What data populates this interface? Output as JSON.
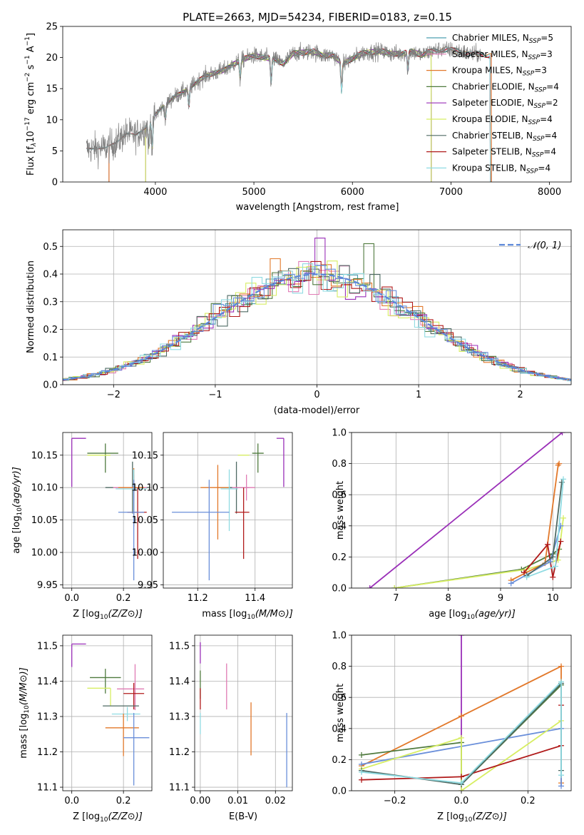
{
  "figure_title": "PLATE=2663, MJD=54234, FIBERID=0183, z=0.15",
  "colors": {
    "Chabrier MILES": "#4d9fb0",
    "Salpeter MILES": "#e07bb4",
    "Kroupa MILES": "#e2782a",
    "Chabrier ELODIE": "#4f7a3e",
    "Salpeter ELODIE": "#9a2fb8",
    "Kroupa ELODIE": "#d7ee63",
    "Chabrier STELIB": "#4e6a63",
    "Salpeter STELIB": "#b01a1a",
    "Kroupa STELIB": "#8fdbe2",
    "Chabrier MILES alt": "#6a8fda",
    "model": "#7f7f7f",
    "normal": "#5b87d8",
    "grid": "#b0b0b0"
  },
  "chart_data": [
    {
      "id": "spectrum",
      "type": "line",
      "title": "PLATE=2663, MJD=54234, FIBERID=0183, z=0.15",
      "xlabel": "wavelength [Angstrom, rest frame]",
      "ylabel": "Flux [f",
      "xlim": [
        3060,
        8220
      ],
      "ylim": [
        0,
        25
      ],
      "xticks": [
        4000,
        5000,
        6000,
        7000,
        8000
      ],
      "yticks": [
        0,
        5,
        10,
        15,
        20,
        25
      ],
      "grid": false,
      "legend_position": "upper-right",
      "continuum_x": [
        3300,
        3500,
        3600,
        3700,
        3800,
        3900,
        4000,
        4100,
        4200,
        4300,
        4400,
        4500,
        4600,
        4700,
        4800,
        4900,
        5000,
        5100,
        5200,
        5300,
        5400,
        5500,
        5600,
        5700,
        5800,
        5900,
        6000,
        6100,
        6200,
        6300,
        6400,
        6500,
        6600,
        6700,
        6800,
        6900,
        7000,
        7100,
        7200,
        7300,
        7400,
        7500,
        7600,
        7700,
        7800,
        7900,
        8000,
        8100,
        8200
      ],
      "continuum_y": [
        5.3,
        5.5,
        6.3,
        7.8,
        7.5,
        8.8,
        10.8,
        12.5,
        13.8,
        14.6,
        15.8,
        17.0,
        17.5,
        18.0,
        19.0,
        19.8,
        20.3,
        20.0,
        19.8,
        19.0,
        20.7,
        20.8,
        21.0,
        20.3,
        20.4,
        19.0,
        19.8,
        20.7,
        20.9,
        21.0,
        20.6,
        20.6,
        21.0,
        20.4,
        21.0,
        21.3,
        21.2,
        21.0,
        20.5,
        20.6,
        20.3,
        19.6,
        19.8,
        19.7,
        19.9,
        19.5,
        19.3,
        19.4,
        19.2
      ],
      "series": [
        {
          "name": "Chabrier MILES, N",
          "nssp": "=5"
        },
        {
          "name": "Salpeter MILES, N",
          "nssp": "=3"
        },
        {
          "name": "Kroupa MILES, N",
          "nssp": "=3"
        },
        {
          "name": "Chabrier ELODIE, N",
          "nssp": "=4"
        },
        {
          "name": "Salpeter ELODIE, N",
          "nssp": "=2"
        },
        {
          "name": "Kroupa ELODIE, N",
          "nssp": "=4"
        },
        {
          "name": "Chabrier STELIB, N",
          "nssp": "=4"
        },
        {
          "name": "Salpeter STELIB, N",
          "nssp": "=4"
        },
        {
          "name": "Kroupa STELIB, N",
          "nssp": "=4"
        }
      ]
    },
    {
      "id": "residuals",
      "type": "histogram",
      "xlabel": "(data-model)/error",
      "ylabel": "Normed distribution",
      "xlim": [
        -2.5,
        2.5
      ],
      "ylim": [
        0,
        0.56
      ],
      "xticks": [
        -2,
        -1,
        0,
        1,
        2
      ],
      "yticks": [
        0.0,
        0.1,
        0.2,
        0.3,
        0.4,
        0.5
      ],
      "grid": true,
      "legend_position": "upper-right",
      "legend_label": "𝒩(0, 1)"
    },
    {
      "id": "age-vs-Z",
      "type": "errorbar",
      "xlabel": "Z [log",
      "ylabel": "age  [log",
      "xlim": [
        -0.035,
        0.31
      ],
      "ylim": [
        9.945,
        10.185
      ],
      "xticks": [
        0.0,
        0.2
      ],
      "yticks": [
        9.95,
        10.0,
        10.05,
        10.1,
        10.15
      ],
      "grid": true,
      "points": [
        {
          "series": "Salpeter ELODIE",
          "x": 0.0,
          "y": 10.176,
          "xerr": [
            0.0,
            0.055
          ],
          "yerr": [
            0.075,
            0.0
          ]
        },
        {
          "series": "Chabrier ELODIE",
          "x": 0.13,
          "y": 10.153,
          "xerr": [
            0.07,
            0.05
          ],
          "yerr": [
            0.03,
            0.015
          ]
        },
        {
          "series": "Kroupa ELODIE",
          "x": 0.15,
          "y": 10.15,
          "xerr": [
            0.09,
            0.0
          ],
          "yerr": [
            0.0,
            0.0
          ]
        },
        {
          "series": "Chabrier STELIB",
          "x": 0.235,
          "y": 10.1,
          "xerr": [
            0.105,
            0.065
          ],
          "yerr": [
            0.04,
            0.04
          ]
        },
        {
          "series": "Salpeter MILES",
          "x": 0.24,
          "y": 10.1,
          "xerr": [
            0.08,
            0.05
          ],
          "yerr": [
            0.02,
            0.02
          ]
        },
        {
          "series": "Kroupa MILES",
          "x": 0.24,
          "y": 10.1,
          "xerr": [
            0.06,
            0.04
          ],
          "yerr": [
            0.06,
            0.03
          ]
        },
        {
          "series": "Kroupa STELIB",
          "x": 0.24,
          "y": 10.098,
          "xerr": [
            0.07,
            0.05
          ],
          "yerr": [
            0.05,
            0.03
          ]
        },
        {
          "series": "Salpeter STELIB",
          "x": 0.255,
          "y": 10.062,
          "xerr": [
            0.04,
            0.035
          ],
          "yerr": [
            0.072,
            0.038
          ]
        },
        {
          "series": "Chabrier MILES alt",
          "x": 0.24,
          "y": 10.062,
          "xerr": [
            0.06,
            0.04
          ],
          "yerr": [
            0.105,
            0.05
          ]
        }
      ]
    },
    {
      "id": "age-vs-mass",
      "type": "errorbar",
      "xlabel": "mass [log",
      "ylabel": "",
      "xlim": [
        11.08,
        11.53
      ],
      "ylim": [
        9.945,
        10.185
      ],
      "xticks": [
        11.2,
        11.4
      ],
      "yticks": [
        9.95,
        10.0,
        10.05,
        10.1,
        10.15
      ],
      "grid": true,
      "points": [
        {
          "series": "Salpeter ELODIE",
          "x": 11.5,
          "y": 10.176,
          "xerr": [
            0.025,
            0.0
          ],
          "yerr": [
            0.075,
            0.0
          ]
        },
        {
          "series": "Chabrier ELODIE",
          "x": 11.41,
          "y": 10.153,
          "xerr": [
            0.02,
            0.02
          ],
          "yerr": [
            0.03,
            0.015
          ]
        },
        {
          "series": "Kroupa ELODIE",
          "x": 11.38,
          "y": 10.15,
          "xerr": [
            0.04,
            0.0
          ],
          "yerr": [
            0.0,
            0.0
          ]
        },
        {
          "series": "Chabrier STELIB",
          "x": 11.335,
          "y": 10.1,
          "xerr": [
            0.065,
            0.045
          ],
          "yerr": [
            0.04,
            0.04
          ]
        },
        {
          "series": "Salpeter MILES",
          "x": 11.37,
          "y": 10.1,
          "xerr": [
            0.05,
            0.03
          ],
          "yerr": [
            0.02,
            0.02
          ]
        },
        {
          "series": "Kroupa MILES",
          "x": 11.27,
          "y": 10.1,
          "xerr": [
            0.06,
            0.04
          ],
          "yerr": [
            0.08,
            0.035
          ]
        },
        {
          "series": "Kroupa STELIB",
          "x": 11.31,
          "y": 10.098,
          "xerr": [
            0.03,
            0.03
          ],
          "yerr": [
            0.065,
            0.03
          ]
        },
        {
          "series": "Salpeter STELIB",
          "x": 11.36,
          "y": 10.062,
          "xerr": [
            0.03,
            0.02
          ],
          "yerr": [
            0.072,
            0.038
          ]
        },
        {
          "series": "Chabrier MILES alt",
          "x": 11.24,
          "y": 10.062,
          "xerr": [
            0.13,
            0.07
          ],
          "yerr": [
            0.105,
            0.05
          ]
        }
      ]
    },
    {
      "id": "weight-vs-age",
      "type": "line",
      "xlabel": "age  [log",
      "ylabel": "mass weight",
      "xlim": [
        6.15,
        10.35
      ],
      "ylim": [
        0.0,
        1.0
      ],
      "xticks": [
        7,
        8,
        9,
        10
      ],
      "yticks": [
        0.0,
        0.2,
        0.4,
        0.6,
        0.8,
        1.0
      ],
      "grid": true,
      "series": [
        {
          "name": "Salpeter ELODIE",
          "x": [
            6.5,
            10.18
          ],
          "y": [
            0.0,
            1.0
          ]
        },
        {
          "name": "Chabrier ELODIE",
          "x": [
            6.97,
            9.4,
            10.0,
            10.12
          ],
          "y": [
            0.0,
            0.12,
            0.22,
            0.25
          ]
        },
        {
          "name": "Kroupa ELODIE",
          "x": [
            6.97,
            9.5,
            10.1,
            10.2
          ],
          "y": [
            0.0,
            0.12,
            0.18,
            0.45
          ]
        },
        {
          "name": "Kroupa MILES",
          "x": [
            9.2,
            9.85,
            10.1,
            10.12
          ],
          "y": [
            0.05,
            0.16,
            0.79,
            0.8
          ]
        },
        {
          "name": "Salpeter STELIB",
          "x": [
            9.45,
            9.9,
            10.0,
            10.15
          ],
          "y": [
            0.1,
            0.28,
            0.07,
            0.3
          ]
        },
        {
          "name": "Chabrier MILES alt",
          "x": [
            9.2,
            9.95,
            10.15
          ],
          "y": [
            0.03,
            0.17,
            0.4
          ]
        },
        {
          "name": "Chabrier STELIB",
          "x": [
            9.5,
            10.0,
            10.17
          ],
          "y": [
            0.08,
            0.2,
            0.68
          ]
        },
        {
          "name": "Kroupa STELIB",
          "x": [
            9.5,
            10.05,
            10.2
          ],
          "y": [
            0.07,
            0.14,
            0.7
          ]
        }
      ]
    },
    {
      "id": "mass-vs-Z",
      "type": "errorbar",
      "xlabel": "Z [log",
      "ylabel": "mass [log",
      "xlim": [
        -0.035,
        0.31
      ],
      "ylim": [
        11.09,
        11.53
      ],
      "xticks": [
        0.0,
        0.2
      ],
      "yticks": [
        11.1,
        11.2,
        11.3,
        11.4,
        11.5
      ],
      "grid": true,
      "points": [
        {
          "series": "Salpeter ELODIE",
          "x": 0.0,
          "y": 11.505,
          "xerr": [
            0.0,
            0.055
          ],
          "yerr": [
            0.065,
            0.0
          ]
        },
        {
          "series": "Chabrier ELODIE",
          "x": 0.13,
          "y": 11.41,
          "xerr": [
            0.06,
            0.06
          ],
          "yerr": [
            0.045,
            0.025
          ]
        },
        {
          "series": "Kroupa ELODIE",
          "x": 0.15,
          "y": 11.38,
          "xerr": [
            0.09,
            0.0
          ],
          "yerr": [
            0.05,
            0.0
          ]
        },
        {
          "series": "Salpeter MILES",
          "x": 0.245,
          "y": 11.378,
          "xerr": [
            0.07,
            0.035
          ],
          "yerr": [
            0.06,
            0.07
          ]
        },
        {
          "series": "Salpeter STELIB",
          "x": 0.24,
          "y": 11.365,
          "xerr": [
            0.04,
            0.04
          ],
          "yerr": [
            0.045,
            0.03
          ]
        },
        {
          "series": "Chabrier STELIB",
          "x": 0.19,
          "y": 11.33,
          "xerr": [
            0.07,
            0.07
          ],
          "yerr": [
            0.0,
            0.0
          ]
        },
        {
          "series": "Kroupa STELIB",
          "x": 0.215,
          "y": 11.307,
          "xerr": [
            0.06,
            0.05
          ],
          "yerr": [
            0.02,
            0.02
          ]
        },
        {
          "series": "Kroupa MILES",
          "x": 0.2,
          "y": 11.268,
          "xerr": [
            0.07,
            0.06
          ],
          "yerr": [
            0.08,
            0.04
          ]
        },
        {
          "series": "Chabrier MILES alt",
          "x": 0.24,
          "y": 11.24,
          "xerr": [
            0.04,
            0.06
          ],
          "yerr": [
            0.135,
            0.07
          ]
        }
      ]
    },
    {
      "id": "mass-vs-ebv",
      "type": "errorbar",
      "xlabel": "E(B-V)",
      "ylabel": "",
      "xlim": [
        -0.0015,
        0.0245
      ],
      "ylim": [
        11.09,
        11.53
      ],
      "xticks": [
        0.0,
        0.01,
        0.02
      ],
      "yticks": [
        11.1,
        11.2,
        11.3,
        11.4,
        11.5
      ],
      "grid": true,
      "points": [
        {
          "series": "Salpeter ELODIE",
          "x": 0.0,
          "y": 11.48,
          "xerr": [
            0.0,
            0.0
          ],
          "yerr": [
            0.03,
            0.03
          ]
        },
        {
          "series": "Chabrier ELODIE",
          "x": 0.0,
          "y": 11.39,
          "xerr": [
            0.0,
            0.0
          ],
          "yerr": [
            0.04,
            0.04
          ]
        },
        {
          "series": "Salpeter STELIB",
          "x": 0.0,
          "y": 11.35,
          "xerr": [
            0.0,
            0.0
          ],
          "yerr": [
            0.03,
            0.03
          ]
        },
        {
          "series": "Kroupa STELIB",
          "x": 0.0,
          "y": 11.28,
          "xerr": [
            0.0,
            0.0
          ],
          "yerr": [
            0.03,
            0.03
          ]
        },
        {
          "series": "Salpeter MILES",
          "x": 0.007,
          "y": 11.385,
          "xerr": [
            0.0,
            0.0
          ],
          "yerr": [
            0.065,
            0.065
          ]
        },
        {
          "series": "Kroupa MILES",
          "x": 0.0135,
          "y": 11.265,
          "xerr": [
            0.0,
            0.0
          ],
          "yerr": [
            0.075,
            0.075
          ]
        },
        {
          "series": "Chabrier MILES alt",
          "x": 0.023,
          "y": 11.205,
          "xerr": [
            0.0,
            0.0
          ],
          "yerr": [
            0.105,
            0.105
          ]
        }
      ]
    },
    {
      "id": "weight-vs-Z",
      "type": "line",
      "xlabel": "Z [log",
      "ylabel": "mass weight",
      "xlim": [
        -0.33,
        0.33
      ],
      "ylim": [
        0.0,
        1.0
      ],
      "xticks": [
        -0.2,
        0.0,
        0.2
      ],
      "yticks": [
        0.0,
        0.2,
        0.4,
        0.6,
        0.8,
        1.0
      ],
      "grid": true,
      "series": [
        {
          "name": "Salpeter ELODIE",
          "x": [
            0.0,
            0.0
          ],
          "y": [
            0.0,
            1.0
          ]
        },
        {
          "name": "Kroupa MILES",
          "x": [
            -0.3,
            0.0,
            0.3,
            0.3
          ],
          "y": [
            0.16,
            0.48,
            0.8,
            0.05
          ]
        },
        {
          "name": "Chabrier ELODIE",
          "x": [
            -0.3,
            0.0,
            0.0,
            0.3
          ],
          "y": [
            0.23,
            0.31,
            0.04,
            0.68
          ]
        },
        {
          "name": "Chabrier MILES alt",
          "x": [
            -0.3,
            0.3,
            0.3
          ],
          "y": [
            0.17,
            0.4,
            0.03
          ]
        },
        {
          "name": "Kroupa ELODIE",
          "x": [
            -0.3,
            0.0,
            0.0,
            0.3
          ],
          "y": [
            0.14,
            0.34,
            0.0,
            0.45
          ]
        },
        {
          "name": "Salpeter STELIB",
          "x": [
            -0.3,
            0.0,
            0.3,
            0.3
          ],
          "y": [
            0.07,
            0.09,
            0.29,
            0.55
          ]
        },
        {
          "name": "Chabrier STELIB",
          "x": [
            -0.3,
            0.0,
            0.3,
            0.3
          ],
          "y": [
            0.13,
            0.04,
            0.69,
            0.13
          ]
        },
        {
          "name": "Kroupa STELIB",
          "x": [
            -0.3,
            0.0,
            0.3,
            0.3
          ],
          "y": [
            0.12,
            0.05,
            0.7,
            0.1
          ]
        }
      ]
    }
  ]
}
